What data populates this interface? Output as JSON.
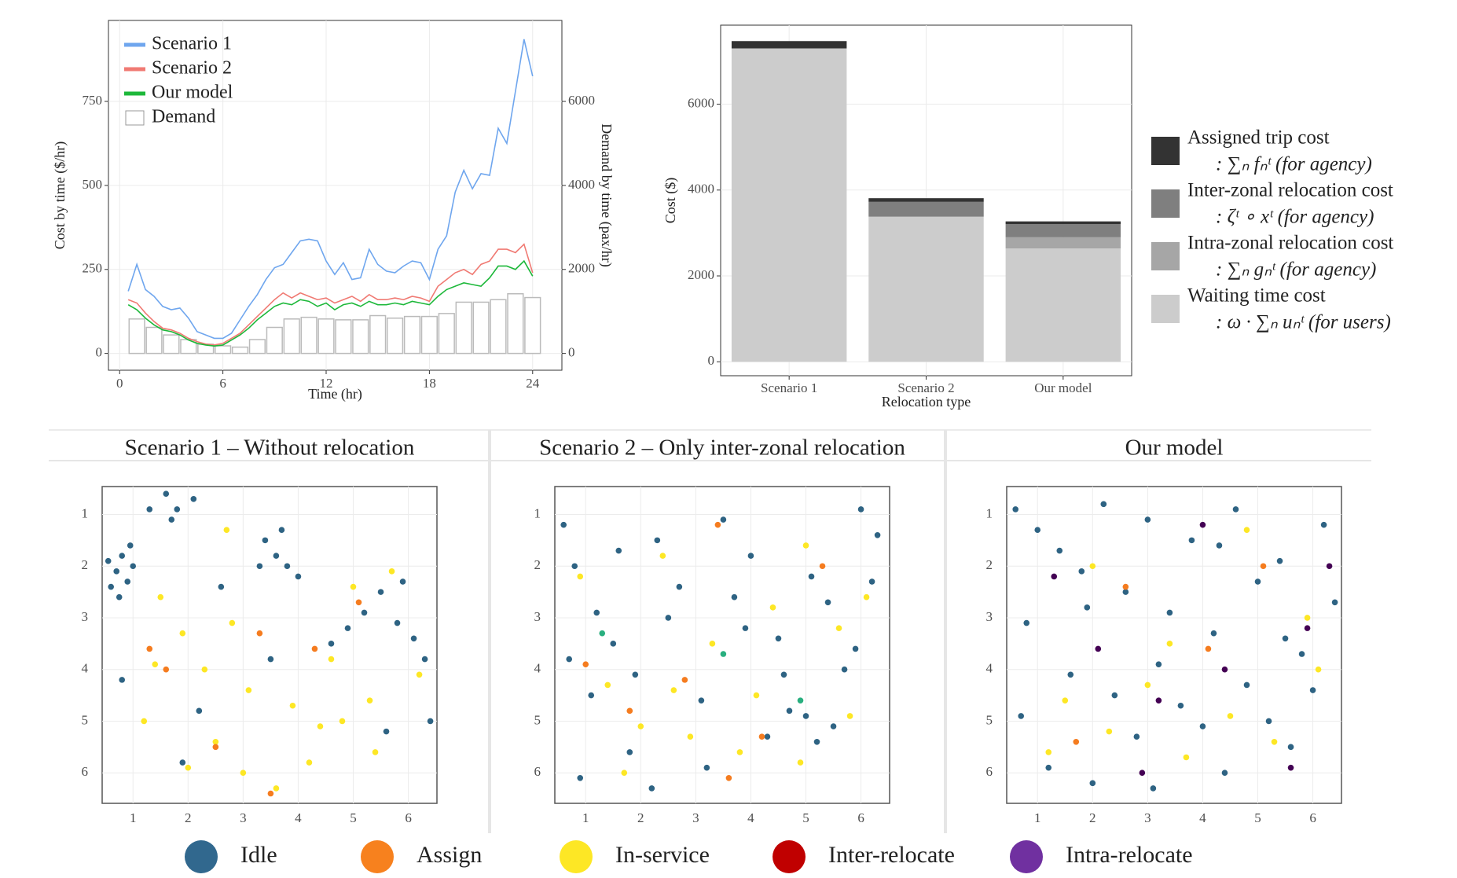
{
  "chart_data": [
    {
      "type": "line",
      "xlabel": "Time (hr)",
      "ylabel": "Cost by time ($/hr)",
      "y2label": "Demand by time (pax/hr)",
      "xlim": [
        -0.65,
        25.7
      ],
      "ylim": [
        -50,
        991
      ],
      "y2lim": [
        -400,
        7928
      ],
      "xticks": [
        0,
        6,
        12,
        18,
        24
      ],
      "yticks": [
        0,
        250,
        500,
        750
      ],
      "y2ticks": [
        0,
        2000,
        4000,
        6000
      ],
      "grid": true,
      "legend": "top-left",
      "x": [
        0.5,
        1,
        1.5,
        2,
        2.5,
        3,
        3.5,
        4,
        4.5,
        5,
        5.5,
        6,
        6.5,
        7,
        7.5,
        8,
        8.5,
        9,
        9.5,
        10,
        10.5,
        11,
        11.5,
        12,
        12.5,
        13,
        13.5,
        14,
        14.5,
        15,
        15.5,
        16,
        16.5,
        17,
        17.5,
        18,
        18.5,
        19,
        19.5,
        20,
        20.5,
        21,
        21.5,
        22,
        22.5,
        23,
        23.5,
        24
      ],
      "series": [
        {
          "name": "Scenario 1",
          "color": "#6fa6ee",
          "values": [
            185,
            265,
            190,
            170,
            140,
            130,
            135,
            105,
            65,
            55,
            45,
            45,
            60,
            100,
            140,
            175,
            220,
            255,
            265,
            300,
            335,
            340,
            335,
            275,
            235,
            270,
            220,
            225,
            310,
            265,
            245,
            240,
            260,
            275,
            270,
            220,
            310,
            350,
            480,
            545,
            490,
            535,
            530,
            670,
            625,
            780,
            935,
            825
          ]
        },
        {
          "name": "Scenario 2",
          "color": "#f07a73",
          "values": [
            160,
            150,
            120,
            95,
            75,
            70,
            60,
            45,
            35,
            28,
            25,
            30,
            45,
            60,
            85,
            110,
            135,
            160,
            180,
            165,
            180,
            170,
            160,
            165,
            150,
            160,
            170,
            155,
            175,
            160,
            160,
            165,
            160,
            170,
            165,
            155,
            200,
            220,
            240,
            250,
            235,
            265,
            275,
            310,
            310,
            300,
            325,
            240
          ]
        },
        {
          "name": "Our model",
          "color": "#1db83a",
          "values": [
            145,
            130,
            105,
            85,
            70,
            65,
            55,
            40,
            30,
            25,
            22,
            25,
            40,
            55,
            75,
            100,
            120,
            140,
            150,
            145,
            160,
            155,
            140,
            150,
            130,
            145,
            150,
            140,
            155,
            145,
            145,
            150,
            145,
            155,
            150,
            145,
            170,
            190,
            200,
            210,
            205,
            200,
            225,
            260,
            260,
            250,
            275,
            230
          ]
        },
        {
          "name": "Demand",
          "type": "bar",
          "axis": "y2",
          "color": "#ffffff",
          "x": [
            1,
            2,
            3,
            4,
            5,
            6,
            7,
            8,
            9,
            10,
            11,
            12,
            13,
            14,
            15,
            16,
            17,
            18,
            19,
            20,
            21,
            22,
            23,
            24
          ],
          "values": [
            820,
            620,
            440,
            330,
            220,
            180,
            150,
            330,
            620,
            820,
            860,
            820,
            800,
            800,
            900,
            840,
            880,
            880,
            950,
            1220,
            1220,
            1280,
            1420,
            1330
          ]
        }
      ]
    },
    {
      "type": "bar",
      "stacked": true,
      "xlabel": "Relocation type",
      "ylabel": "Cost ($)",
      "ylim": [
        -325,
        7841
      ],
      "yticks": [
        0,
        2000,
        4000,
        6000
      ],
      "grid": true,
      "legend": "right",
      "categories": [
        "Scenario 1",
        "Scenario 2",
        "Our model"
      ],
      "series": [
        {
          "name": "Waiting time cost",
          "description": ": ω · ∑ₙ uₙᵗ (for users)",
          "color": "#cccccc",
          "values": [
            7300,
            3380,
            2640
          ]
        },
        {
          "name": "Intra-zonal relocation cost",
          "description": ": ∑ₙ gₙᵗ (for agency)",
          "color": "#a6a6a6",
          "values": [
            0,
            0,
            260
          ]
        },
        {
          "name": "Inter-zonal relocation cost",
          "description": ": ζᵗ ∘ xᵗ (for agency)",
          "color": "#7f7f7f",
          "values": [
            0,
            345,
            305
          ]
        },
        {
          "name": "Assigned trip cost",
          "description": ": ∑ₙ fₙᵗ (for agency)",
          "color": "#333333",
          "values": [
            170,
            85,
            65
          ]
        }
      ]
    },
    {
      "type": "scatter",
      "title": "Scenario 1 – Without relocation",
      "xlim": [
        0.44,
        6.52
      ],
      "ylim": [
        6.59,
        0.46
      ],
      "xticks": [
        1,
        2,
        3,
        4,
        5,
        6
      ],
      "yticks": [
        1,
        2,
        3,
        4,
        5,
        6
      ],
      "grid": true,
      "series": [
        {
          "name": "Idle",
          "color": "#2e6383",
          "x": [
            0.55,
            0.7,
            0.8,
            0.9,
            1.0,
            0.6,
            0.75,
            0.95,
            1.6,
            1.8,
            1.7,
            2.1,
            3.4,
            3.6,
            3.8,
            3.7,
            4.0,
            3.3,
            5.2,
            5.5,
            5.8,
            6.1,
            5.9,
            6.3,
            4.6,
            4.9,
            2.6,
            2.2,
            1.9,
            0.8,
            3.5,
            1.3,
            5.6,
            6.4
          ],
          "y": [
            1.9,
            2.1,
            1.8,
            2.3,
            2.0,
            2.4,
            2.6,
            1.6,
            0.6,
            0.9,
            1.1,
            0.7,
            1.5,
            1.8,
            2.0,
            1.3,
            2.2,
            2.0,
            2.9,
            2.5,
            3.1,
            3.4,
            2.3,
            3.8,
            3.5,
            3.2,
            2.4,
            4.8,
            5.8,
            4.2,
            3.8,
            0.9,
            5.2,
            5.0
          ]
        },
        {
          "name": "In-service",
          "color": "#fde725",
          "x": [
            1.5,
            1.9,
            2.3,
            2.8,
            3.1,
            3.9,
            4.4,
            4.8,
            5.3,
            1.2,
            2.5,
            3.0,
            3.6,
            4.2,
            5.0,
            5.7,
            6.2,
            2.0,
            2.7,
            1.4,
            4.6,
            5.4
          ],
          "y": [
            2.6,
            3.3,
            4.0,
            3.1,
            4.4,
            4.7,
            5.1,
            5.0,
            4.6,
            5.0,
            5.4,
            6.0,
            6.3,
            5.8,
            2.4,
            2.1,
            4.1,
            5.9,
            1.3,
            3.9,
            3.8,
            5.6
          ]
        },
        {
          "name": "Assign",
          "color": "#f57c1f",
          "x": [
            1.3,
            1.6,
            3.3,
            4.3,
            2.5,
            3.5,
            5.1
          ],
          "y": [
            3.6,
            4.0,
            3.3,
            3.6,
            5.5,
            6.4,
            2.7
          ]
        }
      ]
    },
    {
      "type": "scatter",
      "title": "Scenario 2 – Only inter-zonal relocation",
      "xlim": [
        0.44,
        6.52
      ],
      "ylim": [
        6.59,
        0.46
      ],
      "xticks": [
        1,
        2,
        3,
        4,
        5,
        6
      ],
      "yticks": [
        1,
        2,
        3,
        4,
        5,
        6
      ],
      "grid": true,
      "series": [
        {
          "name": "Idle",
          "color": "#2e6383",
          "x": [
            0.6,
            0.8,
            1.2,
            1.5,
            1.9,
            2.3,
            2.7,
            3.1,
            3.5,
            3.9,
            4.3,
            4.7,
            5.1,
            5.5,
            5.9,
            6.3,
            0.7,
            1.1,
            1.8,
            2.5,
            3.2,
            4.0,
            4.6,
            5.0,
            5.4,
            6.0,
            0.9,
            1.6,
            2.2,
            3.7,
            4.5,
            5.2,
            5.7,
            6.2
          ],
          "y": [
            1.2,
            2.0,
            2.9,
            3.5,
            4.1,
            1.5,
            2.4,
            4.6,
            1.1,
            3.2,
            5.3,
            4.8,
            2.2,
            5.1,
            3.6,
            1.4,
            3.8,
            4.5,
            5.6,
            3.0,
            5.9,
            1.8,
            4.1,
            4.9,
            2.7,
            0.9,
            6.1,
            1.7,
            6.3,
            2.6,
            3.4,
            5.4,
            4.0,
            2.3
          ]
        },
        {
          "name": "In-service",
          "color": "#fde725",
          "x": [
            0.9,
            1.4,
            2.0,
            2.6,
            3.3,
            3.8,
            4.4,
            5.0,
            5.6,
            6.1,
            1.7,
            2.9,
            4.1,
            4.9,
            5.8,
            2.4
          ],
          "y": [
            2.2,
            4.3,
            5.1,
            4.4,
            3.5,
            5.6,
            2.8,
            1.6,
            3.2,
            2.6,
            6.0,
            5.3,
            4.5,
            5.8,
            4.9,
            1.8
          ]
        },
        {
          "name": "Assign",
          "color": "#f57c1f",
          "x": [
            1.0,
            1.8,
            2.8,
            3.4,
            4.2,
            5.3,
            3.6
          ],
          "y": [
            3.9,
            4.8,
            4.2,
            1.2,
            5.3,
            2.0,
            6.1
          ]
        },
        {
          "name": "Inter-relocate",
          "color": "#29af7f",
          "x": [
            1.3,
            3.5,
            4.9
          ],
          "y": [
            3.3,
            3.7,
            4.6
          ]
        }
      ]
    },
    {
      "type": "scatter",
      "title": "Our model",
      "xlim": [
        0.44,
        6.52
      ],
      "ylim": [
        6.59,
        0.46
      ],
      "xticks": [
        1,
        2,
        3,
        4,
        5,
        6
      ],
      "yticks": [
        1,
        2,
        3,
        4,
        5,
        6
      ],
      "grid": true,
      "series": [
        {
          "name": "Idle",
          "color": "#2e6383",
          "x": [
            0.6,
            1.0,
            1.4,
            1.8,
            2.2,
            2.6,
            3.0,
            3.4,
            3.8,
            4.2,
            4.6,
            5.0,
            5.4,
            5.8,
            6.2,
            0.8,
            1.6,
            2.4,
            3.2,
            4.0,
            4.8,
            5.6,
            6.4,
            1.2,
            2.0,
            2.8,
            3.6,
            4.4,
            5.2,
            6.0,
            0.7,
            1.9,
            3.1,
            4.3,
            5.5
          ],
          "y": [
            0.9,
            1.3,
            1.7,
            2.1,
            0.8,
            2.5,
            1.1,
            2.9,
            1.5,
            3.3,
            0.9,
            2.3,
            1.9,
            3.7,
            1.2,
            3.1,
            4.1,
            4.5,
            3.9,
            5.1,
            4.3,
            5.5,
            2.7,
            5.9,
            6.2,
            5.3,
            4.7,
            6.0,
            5.0,
            4.4,
            4.9,
            2.8,
            6.3,
            1.6,
            3.4
          ]
        },
        {
          "name": "In-service",
          "color": "#fde725",
          "x": [
            1.5,
            2.3,
            3.0,
            3.7,
            4.5,
            5.3,
            5.9,
            2.0,
            3.4,
            4.8,
            1.2,
            6.1
          ],
          "y": [
            4.6,
            5.2,
            4.3,
            5.7,
            4.9,
            5.4,
            3.0,
            2.0,
            3.5,
            1.3,
            5.6,
            4.0
          ]
        },
        {
          "name": "Assign",
          "color": "#f57c1f",
          "x": [
            2.6,
            4.1,
            1.7,
            5.1
          ],
          "y": [
            2.4,
            3.6,
            5.4,
            2.0
          ]
        },
        {
          "name": "Intra-relocate",
          "color": "#440154",
          "x": [
            1.3,
            2.1,
            3.2,
            4.4,
            5.6,
            4.0,
            2.9,
            5.9,
            6.3
          ],
          "y": [
            2.2,
            3.6,
            4.6,
            4.0,
            5.9,
            1.2,
            6.0,
            3.2,
            2.0
          ]
        }
      ]
    }
  ],
  "legend": [
    {
      "name": "Idle",
      "color": "#31688e"
    },
    {
      "name": "Assign",
      "color": "#f7811e"
    },
    {
      "name": "In-service",
      "color": "#fde725"
    },
    {
      "name": "Inter-relocate",
      "color": "#c00000"
    },
    {
      "name": "Intra-relocate",
      "color": "#7030a0"
    }
  ]
}
